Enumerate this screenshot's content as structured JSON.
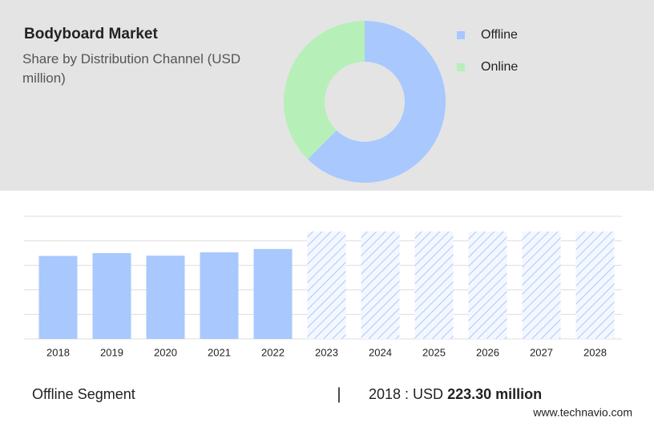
{
  "chart_data": [
    {
      "type": "pie",
      "title": "Bodyboard Market",
      "subtitle": "Share by Distribution Channel (USD million)",
      "hole": true,
      "series": [
        {
          "name": "Offline",
          "color": "#a8c8fe",
          "values": [
            62.4
          ]
        },
        {
          "name": "Online",
          "color": "#b6f0b8",
          "values": [
            37.6
          ]
        }
      ]
    },
    {
      "type": "bar",
      "categories": [
        "2018",
        "2019",
        "2020",
        "2021",
        "2022",
        "2023",
        "2024",
        "2025",
        "2026",
        "2027",
        "2028"
      ],
      "series": [
        {
          "name": "Offline",
          "color": "#a8c8fe",
          "values": [
            223.3,
            231,
            224,
            233,
            242,
            289,
            289,
            289,
            289,
            289,
            289
          ]
        }
      ],
      "hatched": [
        false,
        false,
        false,
        false,
        false,
        true,
        true,
        true,
        true,
        true,
        true
      ],
      "ylim": [
        0,
        330
      ]
    }
  ],
  "footer": {
    "segment": "Offline Segment",
    "separator": "|",
    "lead": "2018 : USD",
    "value": "223.30 million",
    "source": "www.technavio.com"
  }
}
